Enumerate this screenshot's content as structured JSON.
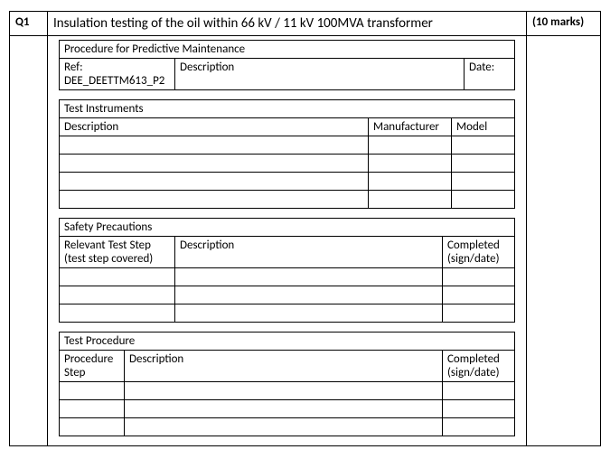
{
  "header": {
    "question_no": "Q1",
    "title": "Insulation testing of the oil within 66 kV / 11 kV 100MVA transformer",
    "marks": "(10 marks)"
  },
  "section_proc": {
    "title": "Procedure for Predictive Maintenance",
    "ref_label": "Ref:",
    "ref_value": "DEE_DEETTM613_P2",
    "desc_label": "Description",
    "date_label": "Date:"
  },
  "section_instr": {
    "title": "Test Instruments",
    "desc_label": "Description",
    "manu_label": "Manufacturer",
    "model_label": "Model",
    "rows": 4
  },
  "section_safety": {
    "title": "Safety Precautions",
    "step_label": "Relevant Test Step (test step covered)",
    "desc_label": "Description",
    "comp_label": "Completed (sign/date)",
    "rows": 3
  },
  "section_tproc": {
    "title": "Test Procedure",
    "step_label": "Procedure Step",
    "desc_label": "Description",
    "comp_label": "Completed (sign/date)",
    "rows": 3
  },
  "style": {
    "border_color": "#000000",
    "background": "#ffffff",
    "font_family": "Calibri",
    "base_fontsize_pt": 10,
    "title_fontsize_pt": 11
  }
}
